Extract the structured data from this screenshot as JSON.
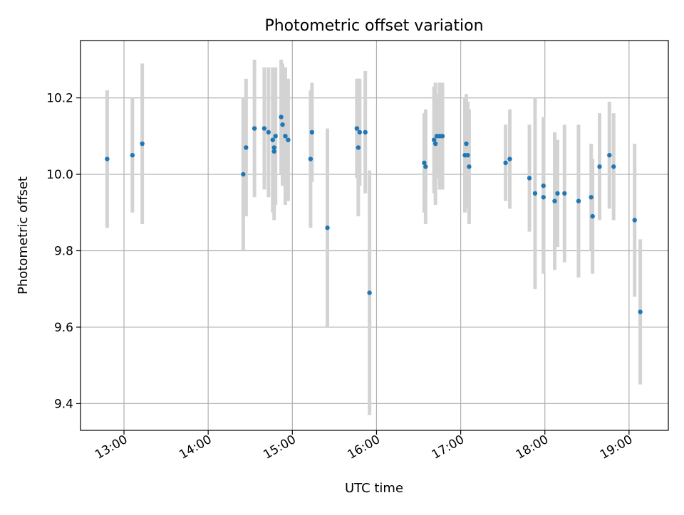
{
  "chart_data": {
    "type": "scatter",
    "title": "Photometric offset variation",
    "xlabel": "UTC time",
    "ylabel": "Photometric offset",
    "x_ticks": [
      "13:00",
      "14:00",
      "15:00",
      "16:00",
      "17:00",
      "18:00",
      "19:00"
    ],
    "y_ticks": [
      "9.4",
      "9.6",
      "9.8",
      "10.0",
      "10.2"
    ],
    "xlim": [
      "12:29",
      "19:28"
    ],
    "ylim": [
      9.33,
      10.35
    ],
    "grid": true,
    "colors": {
      "marker": "#1f77b4",
      "errorbar": "#d3d3d3",
      "grid": "#b0b0b0"
    },
    "series": [
      {
        "x": [
          "12:48",
          "13:06",
          "13:13",
          "14:25",
          "14:27",
          "14:33",
          "14:40",
          "14:43",
          "14:46",
          "14:47",
          "14:47",
          "14:48",
          "14:52",
          "14:53",
          "14:55",
          "14:57",
          "15:13",
          "15:14",
          "15:25",
          "15:46",
          "15:47",
          "15:48",
          "15:52",
          "15:55",
          "16:34",
          "16:35",
          "16:41",
          "16:42",
          "16:43",
          "16:45",
          "16:47",
          "17:03",
          "17:04",
          "17:05",
          "17:06",
          "17:32",
          "17:35",
          "17:49",
          "17:53",
          "17:59",
          "17:59",
          "18:07",
          "18:09",
          "18:14",
          "18:24",
          "18:33",
          "18:34",
          "18:39",
          "18:46",
          "18:49",
          "19:04",
          "19:08"
        ],
        "y": [
          10.04,
          10.05,
          10.08,
          10.0,
          10.07,
          10.12,
          10.12,
          10.11,
          10.09,
          10.07,
          10.06,
          10.1,
          10.15,
          10.13,
          10.1,
          10.09,
          10.04,
          10.11,
          9.86,
          10.12,
          10.07,
          10.11,
          10.11,
          9.69,
          10.03,
          10.02,
          10.09,
          10.08,
          10.1,
          10.1,
          10.1,
          10.05,
          10.08,
          10.05,
          10.02,
          10.03,
          10.04,
          9.99,
          9.95,
          9.97,
          9.94,
          9.93,
          9.95,
          9.95,
          9.93,
          9.94,
          9.89,
          10.02,
          10.05,
          10.02,
          9.88,
          9.64
        ],
        "yerr": [
          0.18,
          0.15,
          0.21,
          0.2,
          0.18,
          0.18,
          0.16,
          0.17,
          0.19,
          0.17,
          0.18,
          0.18,
          0.15,
          0.16,
          0.18,
          0.16,
          0.18,
          0.13,
          0.26,
          0.13,
          0.18,
          0.14,
          0.16,
          0.32,
          0.13,
          0.15,
          0.14,
          0.16,
          0.11,
          0.14,
          0.14,
          0.15,
          0.13,
          0.14,
          0.15,
          0.1,
          0.13,
          0.14,
          0.25,
          0.18,
          0.2,
          0.18,
          0.14,
          0.18,
          0.2,
          0.14,
          0.15,
          0.14,
          0.14,
          0.14,
          0.2,
          0.19
        ]
      }
    ]
  }
}
